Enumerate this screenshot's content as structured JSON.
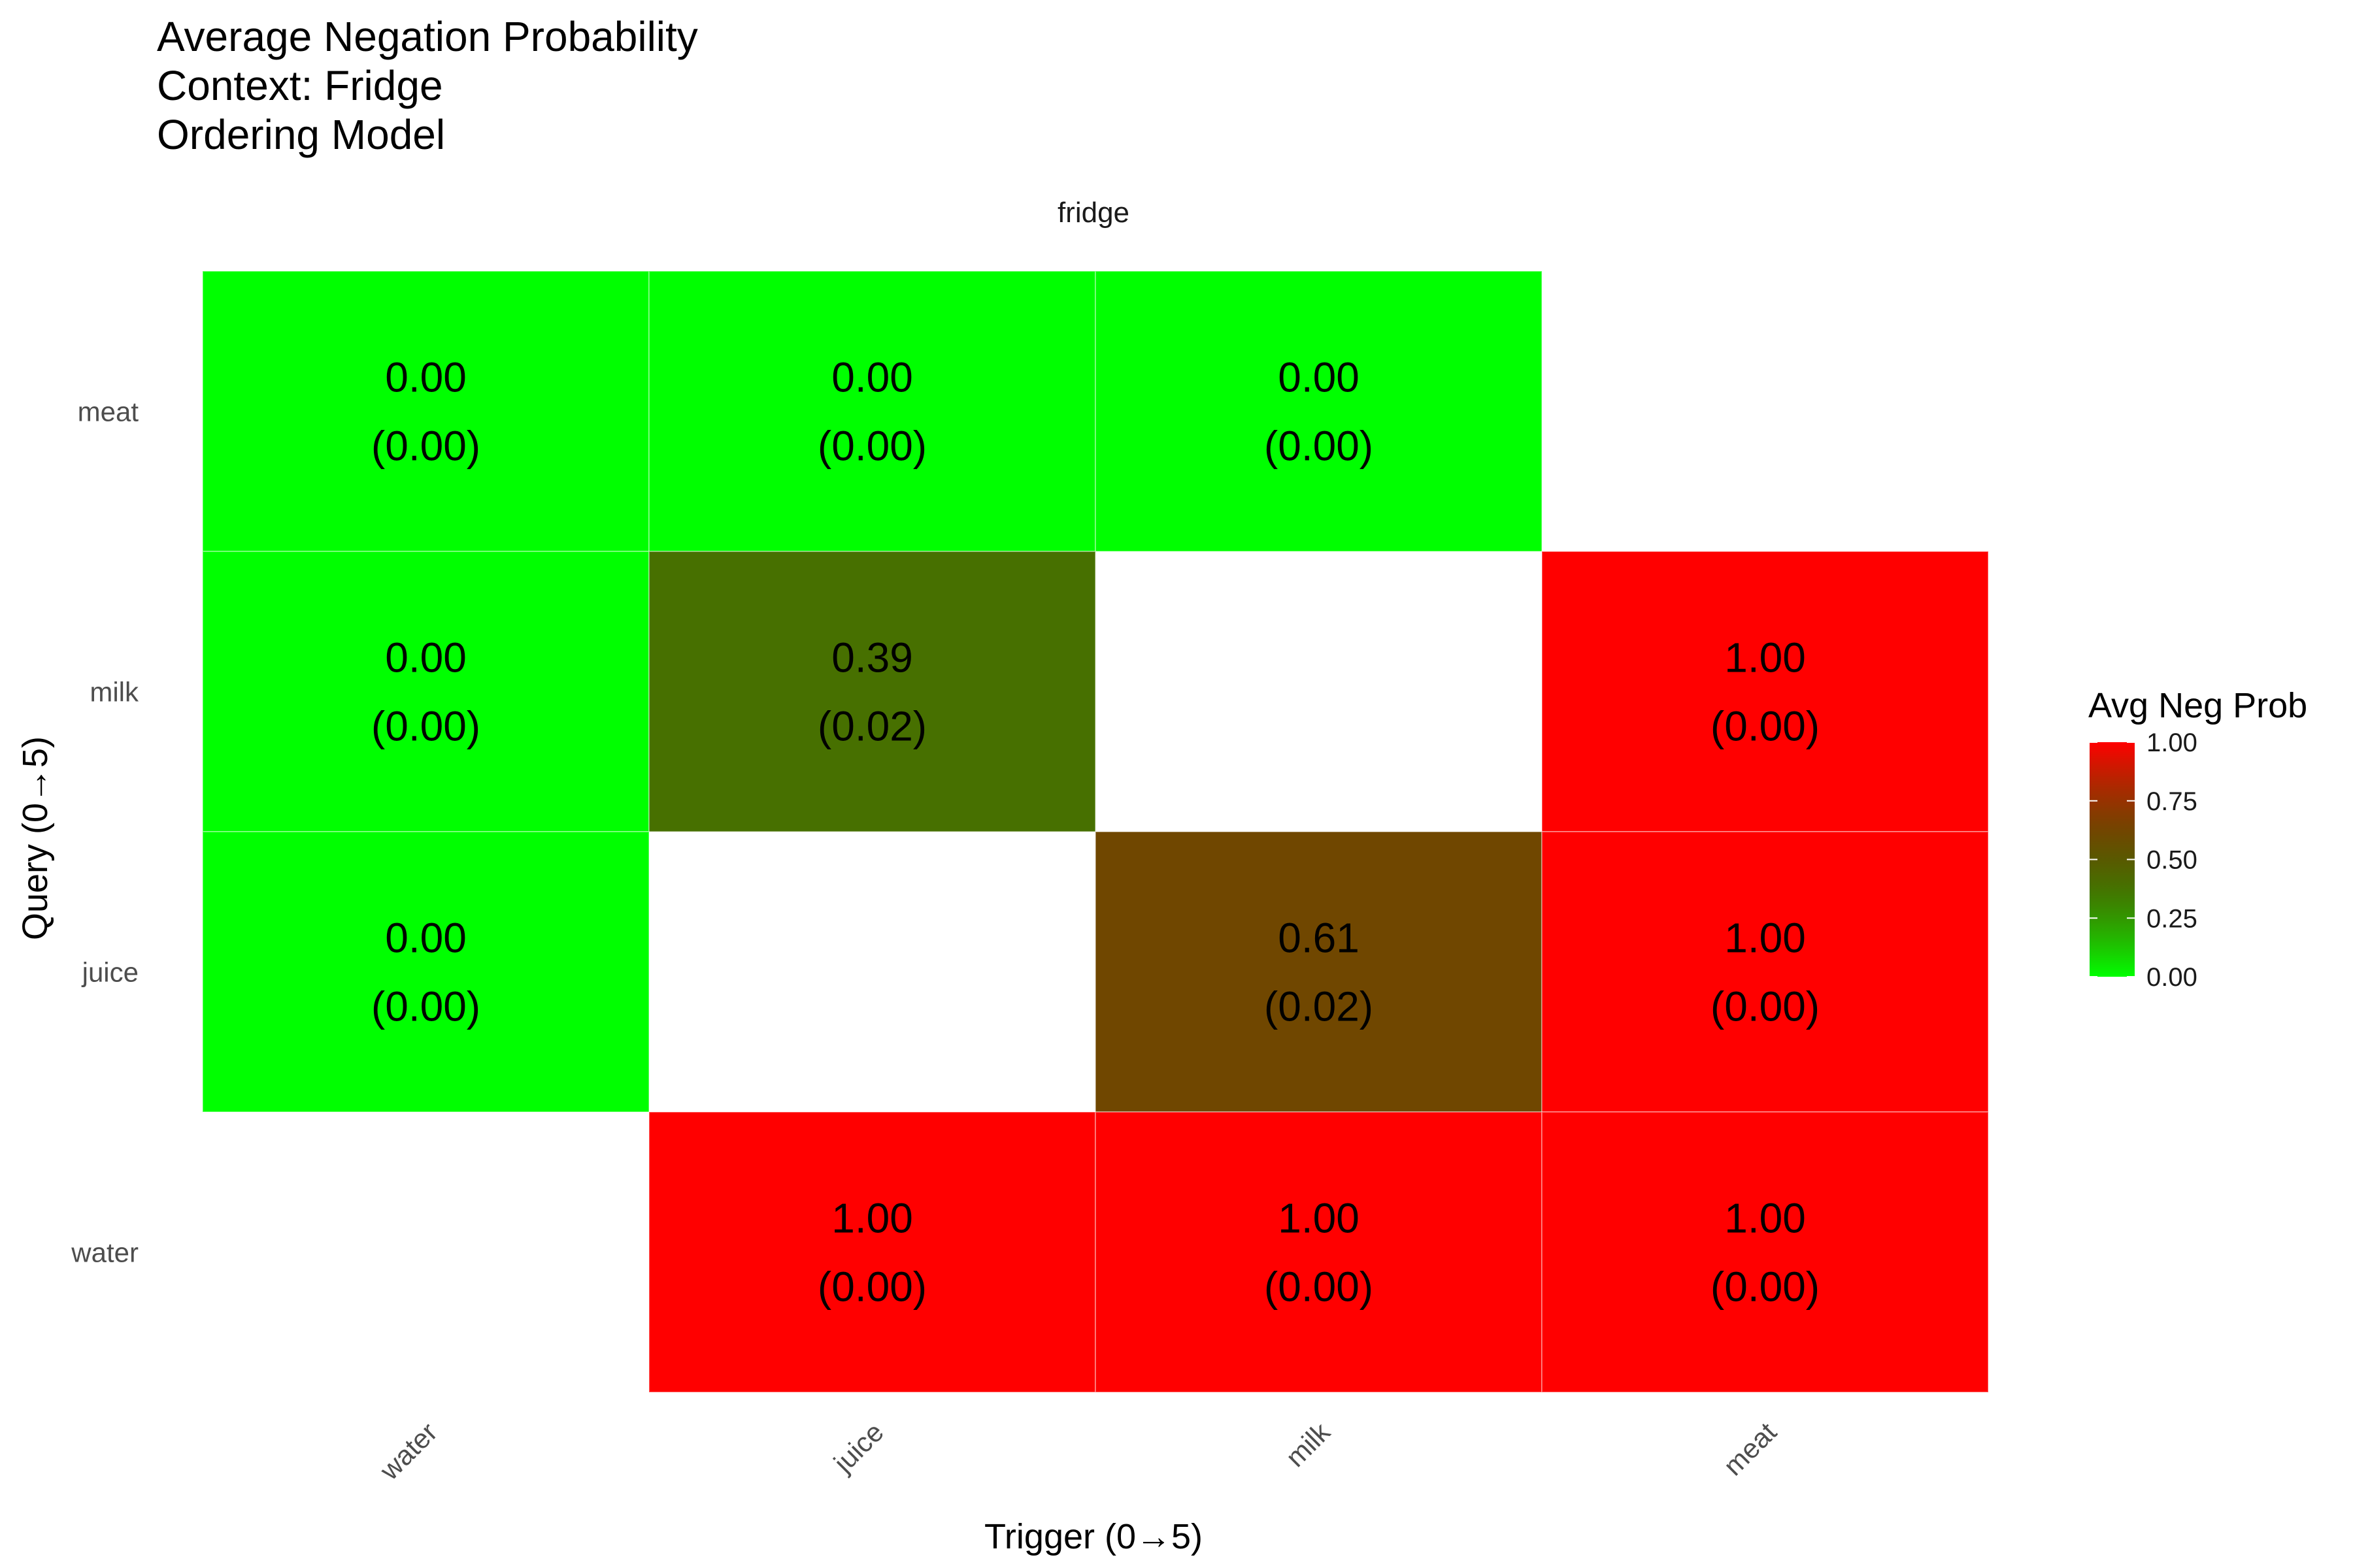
{
  "chart_data": {
    "type": "heatmap",
    "title_lines": [
      "Average Negation Probability",
      "Context: Fridge",
      "Ordering Model"
    ],
    "facet_label": "fridge",
    "xlabel": "Trigger (0→5)",
    "ylabel": "Query   (0→5)",
    "x_categories": [
      "water",
      "juice",
      "milk",
      "meat"
    ],
    "y_categories": [
      "meat",
      "milk",
      "juice",
      "water"
    ],
    "cells": [
      {
        "query": "meat",
        "trigger": "water",
        "value": 0.0,
        "se": 0.0,
        "label_value": "0.00",
        "label_se": "(0.00)"
      },
      {
        "query": "meat",
        "trigger": "juice",
        "value": 0.0,
        "se": 0.0,
        "label_value": "0.00",
        "label_se": "(0.00)"
      },
      {
        "query": "meat",
        "trigger": "milk",
        "value": 0.0,
        "se": 0.0,
        "label_value": "0.00",
        "label_se": "(0.00)"
      },
      {
        "query": "milk",
        "trigger": "water",
        "value": 0.0,
        "se": 0.0,
        "label_value": "0.00",
        "label_se": "(0.00)"
      },
      {
        "query": "milk",
        "trigger": "juice",
        "value": 0.39,
        "se": 0.02,
        "label_value": "0.39",
        "label_se": "(0.02)"
      },
      {
        "query": "milk",
        "trigger": "meat",
        "value": 1.0,
        "se": 0.0,
        "label_value": "1.00",
        "label_se": "(0.00)"
      },
      {
        "query": "juice",
        "trigger": "water",
        "value": 0.0,
        "se": 0.0,
        "label_value": "0.00",
        "label_se": "(0.00)"
      },
      {
        "query": "juice",
        "trigger": "milk",
        "value": 0.61,
        "se": 0.02,
        "label_value": "0.61",
        "label_se": "(0.02)"
      },
      {
        "query": "juice",
        "trigger": "meat",
        "value": 1.0,
        "se": 0.0,
        "label_value": "1.00",
        "label_se": "(0.00)"
      },
      {
        "query": "water",
        "trigger": "juice",
        "value": 1.0,
        "se": 0.0,
        "label_value": "1.00",
        "label_se": "(0.00)"
      },
      {
        "query": "water",
        "trigger": "milk",
        "value": 1.0,
        "se": 0.0,
        "label_value": "1.00",
        "label_se": "(0.00)"
      },
      {
        "query": "water",
        "trigger": "meat",
        "value": 1.0,
        "se": 0.0,
        "label_value": "1.00",
        "label_se": "(0.00)"
      }
    ],
    "legend": {
      "title": "Avg Neg Prob",
      "range": [
        0,
        1
      ],
      "ticks": [
        "1.00",
        "0.75",
        "0.50",
        "0.25",
        "0.00"
      ],
      "tick_values": [
        1.0,
        0.75,
        0.5,
        0.25,
        0.0
      ],
      "low_color": "#00ff00",
      "high_color": "#ff0000"
    },
    "grid": false
  }
}
